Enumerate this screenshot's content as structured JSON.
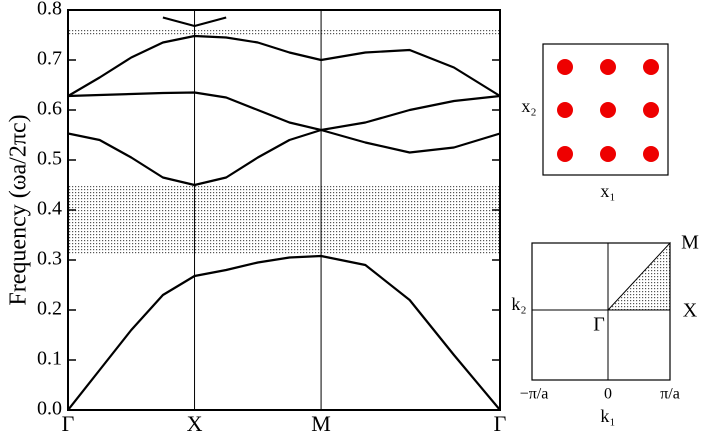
{
  "chart_data": {
    "type": "line",
    "y_label": "Frequency (ωa/2πc)",
    "x": [
      0,
      0.25,
      0.5,
      0.75,
      1,
      1.25,
      1.5,
      1.75,
      2,
      2.35,
      2.7,
      3.05,
      3.414
    ],
    "xlim": [
      0,
      3.414
    ],
    "xticks": [
      {
        "value": 0,
        "label": "Γ"
      },
      {
        "value": 1,
        "label": "X"
      },
      {
        "value": 2,
        "label": "M"
      },
      {
        "value": 3.414,
        "label": "Γ"
      }
    ],
    "ylim": [
      0,
      0.8
    ],
    "yticks": [
      {
        "value": 0,
        "label": "0.0"
      },
      0.1,
      0.2,
      0.3,
      0.4,
      0.5,
      0.6,
      0.7,
      0.8
    ],
    "grid": true,
    "gaps": [
      [
        0.31,
        0.45
      ],
      [
        0.75,
        0.76
      ]
    ],
    "series": [
      {
        "color": "#000000",
        "values": [
          0,
          0.08,
          0.16,
          0.23,
          0.268,
          0.28,
          0.295,
          0.305,
          0.308,
          0.29,
          0.22,
          0.11,
          0
        ]
      },
      {
        "color": "#000000",
        "values": [
          0.553,
          0.54,
          0.505,
          0.465,
          0.45,
          0.465,
          0.505,
          0.54,
          0.56,
          0.535,
          0.515,
          0.525,
          0.553
        ]
      },
      {
        "color": "#000000",
        "values": [
          0.628,
          0.63,
          0.632,
          0.634,
          0.635,
          0.625,
          0.6,
          0.575,
          0.56,
          0.575,
          0.6,
          0.618,
          0.628
        ]
      },
      {
        "color": "#000000",
        "values": [
          0.628,
          0.665,
          0.705,
          0.735,
          0.748,
          0.745,
          0.735,
          0.715,
          0.7,
          0.715,
          0.72,
          0.685,
          0.628
        ]
      },
      {
        "color": "#000000",
        "values": [
          null,
          null,
          null,
          0.785,
          0.768,
          0.785,
          null,
          null,
          null,
          null,
          null,
          null,
          null
        ]
      }
    ]
  },
  "insets": {
    "lattice": {
      "y_label": "x₂",
      "x_label": "x₁"
    },
    "brillouin_zone": {
      "point_m": "M",
      "point_x": "X",
      "point_gamma": "Γ",
      "y_label": "k₂",
      "x_label": "k₁",
      "tick_left": "−π/a",
      "tick_center": "0",
      "tick_right": "π/a"
    }
  }
}
